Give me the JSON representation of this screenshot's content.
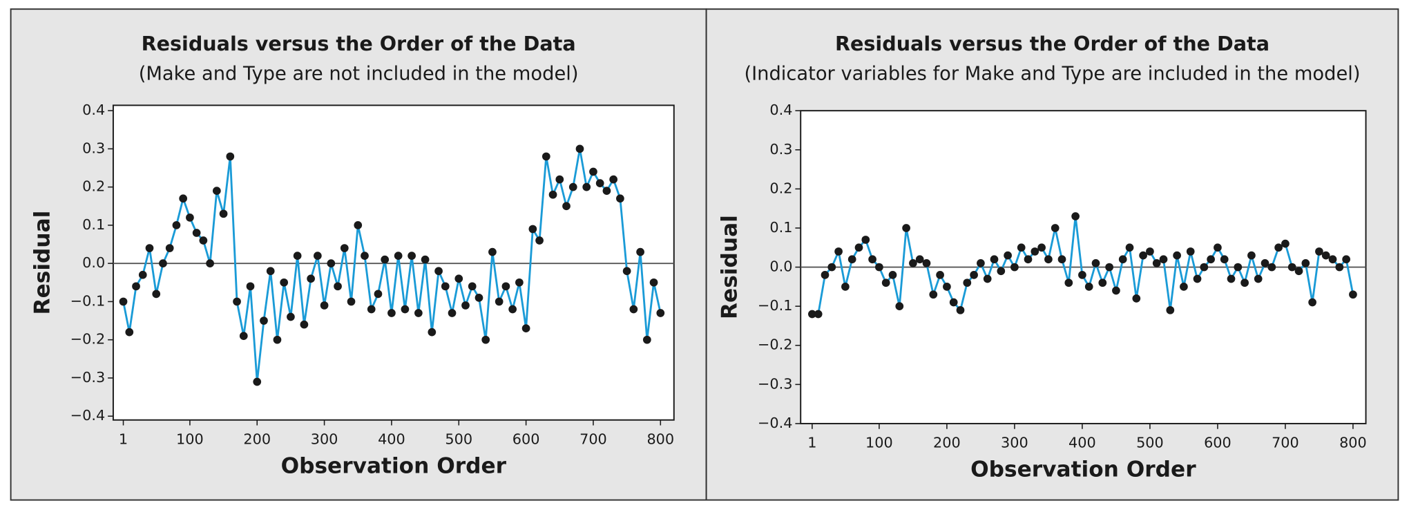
{
  "chart_data": [
    {
      "type": "line",
      "title": "Residuals versus the Order of the Data",
      "subtitle": "(Make and Type are not included in the model)",
      "xlabel": "Observation Order",
      "ylabel": "Residual",
      "x": [
        1,
        10,
        20,
        30,
        40,
        50,
        60,
        70,
        80,
        90,
        100,
        110,
        120,
        130,
        140,
        150,
        160,
        170,
        180,
        190,
        200,
        210,
        220,
        230,
        240,
        250,
        260,
        270,
        280,
        290,
        300,
        310,
        320,
        330,
        340,
        350,
        360,
        370,
        380,
        390,
        400,
        410,
        420,
        430,
        440,
        450,
        460,
        470,
        480,
        490,
        500,
        510,
        520,
        530,
        540,
        550,
        560,
        570,
        580,
        590,
        600,
        610,
        620,
        630,
        640,
        650,
        660,
        670,
        680,
        690,
        700,
        710,
        720,
        730,
        740,
        750,
        760,
        770,
        780,
        790,
        800
      ],
      "series": [
        {
          "color": "#1a9bd7",
          "marker_color": "#1a1a1a",
          "values": [
            -0.1,
            -0.18,
            -0.06,
            -0.03,
            0.04,
            -0.08,
            0.0,
            0.04,
            0.1,
            0.17,
            0.12,
            0.08,
            0.06,
            0.0,
            0.19,
            0.13,
            0.28,
            -0.1,
            -0.19,
            -0.06,
            -0.31,
            -0.15,
            -0.02,
            -0.2,
            -0.05,
            -0.14,
            0.02,
            -0.16,
            -0.04,
            0.02,
            -0.11,
            0.0,
            -0.06,
            0.04,
            -0.1,
            0.1,
            0.02,
            -0.12,
            -0.08,
            0.01,
            -0.13,
            0.02,
            -0.12,
            0.02,
            -0.13,
            0.01,
            -0.18,
            -0.02,
            -0.06,
            -0.13,
            -0.04,
            -0.11,
            -0.06,
            -0.09,
            -0.2,
            0.03,
            -0.1,
            -0.06,
            -0.12,
            -0.05,
            -0.17,
            0.09,
            0.06,
            0.28,
            0.18,
            0.22,
            0.15,
            0.2,
            0.3,
            0.2,
            0.24,
            0.21,
            0.19,
            0.22,
            0.17,
            -0.02,
            -0.12,
            0.03,
            -0.2,
            -0.05,
            -0.13
          ]
        }
      ],
      "xlim": [
        -14,
        820
      ],
      "ylim": [
        -0.41,
        0.414
      ],
      "xticks": [
        1,
        100,
        200,
        300,
        400,
        500,
        600,
        700,
        800
      ],
      "yticks": [
        {
          "value": -0.4,
          "label": "−0.4"
        },
        {
          "value": -0.3,
          "label": "−0.3"
        },
        {
          "value": -0.2,
          "label": "−0.2"
        },
        {
          "value": -0.1,
          "label": "−0.1"
        },
        {
          "value": 0,
          "label": "0.0"
        },
        0.1,
        0.2,
        0.3,
        0.4
      ],
      "reference_line": 0
    },
    {
      "type": "line",
      "title": "Residuals versus the Order of the Data",
      "subtitle": "(Indicator variables for Make and Type are included in the model)",
      "xlabel": "Observation Order",
      "ylabel": "Residual",
      "x": [
        1,
        10,
        20,
        30,
        40,
        50,
        60,
        70,
        80,
        90,
        100,
        110,
        120,
        130,
        140,
        150,
        160,
        170,
        180,
        190,
        200,
        210,
        220,
        230,
        240,
        250,
        260,
        270,
        280,
        290,
        300,
        310,
        320,
        330,
        340,
        350,
        360,
        370,
        380,
        390,
        400,
        410,
        420,
        430,
        440,
        450,
        460,
        470,
        480,
        490,
        500,
        510,
        520,
        530,
        540,
        550,
        560,
        570,
        580,
        590,
        600,
        610,
        620,
        630,
        640,
        650,
        660,
        670,
        680,
        690,
        700,
        710,
        720,
        730,
        740,
        750,
        760,
        770,
        780,
        790,
        800
      ],
      "series": [
        {
          "color": "#1a9bd7",
          "marker_color": "#1a1a1a",
          "values": [
            -0.12,
            -0.12,
            -0.02,
            0.0,
            0.04,
            -0.05,
            0.02,
            0.05,
            0.07,
            0.02,
            0.0,
            -0.04,
            -0.02,
            -0.1,
            0.1,
            0.01,
            0.02,
            0.01,
            -0.07,
            -0.02,
            -0.05,
            -0.09,
            -0.11,
            -0.04,
            -0.02,
            0.01,
            -0.03,
            0.02,
            -0.01,
            0.03,
            0.0,
            0.05,
            0.02,
            0.04,
            0.05,
            0.02,
            0.1,
            0.02,
            -0.04,
            0.13,
            -0.02,
            -0.05,
            0.01,
            -0.04,
            0.0,
            -0.06,
            0.02,
            0.05,
            -0.08,
            0.03,
            0.04,
            0.01,
            0.02,
            -0.11,
            0.03,
            -0.05,
            0.04,
            -0.03,
            0.0,
            0.02,
            0.05,
            0.02,
            -0.03,
            0.0,
            -0.04,
            0.03,
            -0.03,
            0.01,
            0.0,
            0.05,
            0.06,
            0.0,
            -0.01,
            0.01,
            -0.09,
            0.04,
            0.03,
            0.02,
            0.0,
            0.02,
            -0.07
          ]
        }
      ],
      "xlim": [
        -16,
        819
      ],
      "ylim": [
        -0.4,
        0.4
      ],
      "xticks": [
        1,
        100,
        200,
        300,
        400,
        500,
        600,
        700,
        800
      ],
      "yticks": [
        {
          "value": -0.4,
          "label": "−0.4"
        },
        {
          "value": -0.3,
          "label": "−0.3"
        },
        {
          "value": -0.2,
          "label": "−0.2"
        },
        {
          "value": -0.1,
          "label": "−0.1"
        },
        {
          "value": 0,
          "label": "0.0"
        },
        0.1,
        0.2,
        0.3,
        0.4
      ],
      "reference_line": 0
    }
  ]
}
